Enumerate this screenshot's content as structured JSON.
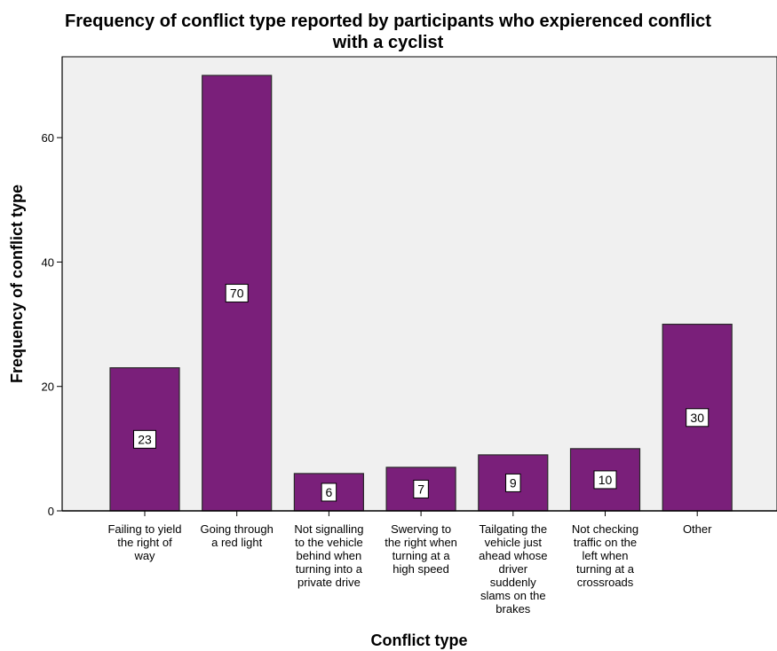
{
  "chart_data": {
    "type": "bar",
    "title": "Frequency of conflict type reported by participants who expierenced conflict with a cyclist",
    "title_lines": [
      "Frequency of conflict type reported by participants who expierenced conflict",
      "with a cyclist"
    ],
    "xlabel": "Conflict type",
    "ylabel": "Frequency of conflict type",
    "categories": [
      "Failing to yield the right of way",
      "Going through a red light",
      "Not signalling to the vehicle behind when turning into a private drive",
      "Swerving to the right when turning at a high speed",
      "Tailgating the vehicle just ahead whose driver suddenly slams on the brakes",
      "Not checking traffic on the left when turning at a crossroads",
      "Other"
    ],
    "category_lines": [
      [
        "Failing to yield",
        "the right of",
        "way"
      ],
      [
        "Going through",
        "a red light"
      ],
      [
        "Not signalling",
        "to the vehicle",
        "behind when",
        "turning into a",
        "private drive"
      ],
      [
        "Swerving to",
        "the right when",
        "turning at a",
        "high speed"
      ],
      [
        "Tailgating the",
        "vehicle just",
        "ahead whose",
        "driver",
        "suddenly",
        "slams on the",
        "brakes"
      ],
      [
        "Not checking",
        "traffic on the",
        "left when",
        "turning at a",
        "crossroads"
      ],
      [
        "Other"
      ]
    ],
    "values": [
      23,
      70,
      6,
      7,
      9,
      10,
      30
    ],
    "data_labels": [
      "23",
      "70",
      "6",
      "7",
      "9",
      "10",
      "30"
    ],
    "ylim": [
      0,
      73
    ],
    "yticks": [
      0,
      20,
      40,
      60
    ],
    "ytick_labels": [
      "0",
      "20",
      "40",
      "60"
    ],
    "grid": false,
    "legend": "none",
    "colors": {
      "bar_fill": "#7A1F7A",
      "bar_stroke": "#2a2a2a",
      "plot_background": "#F0F0F0",
      "axis": "#000000"
    }
  }
}
